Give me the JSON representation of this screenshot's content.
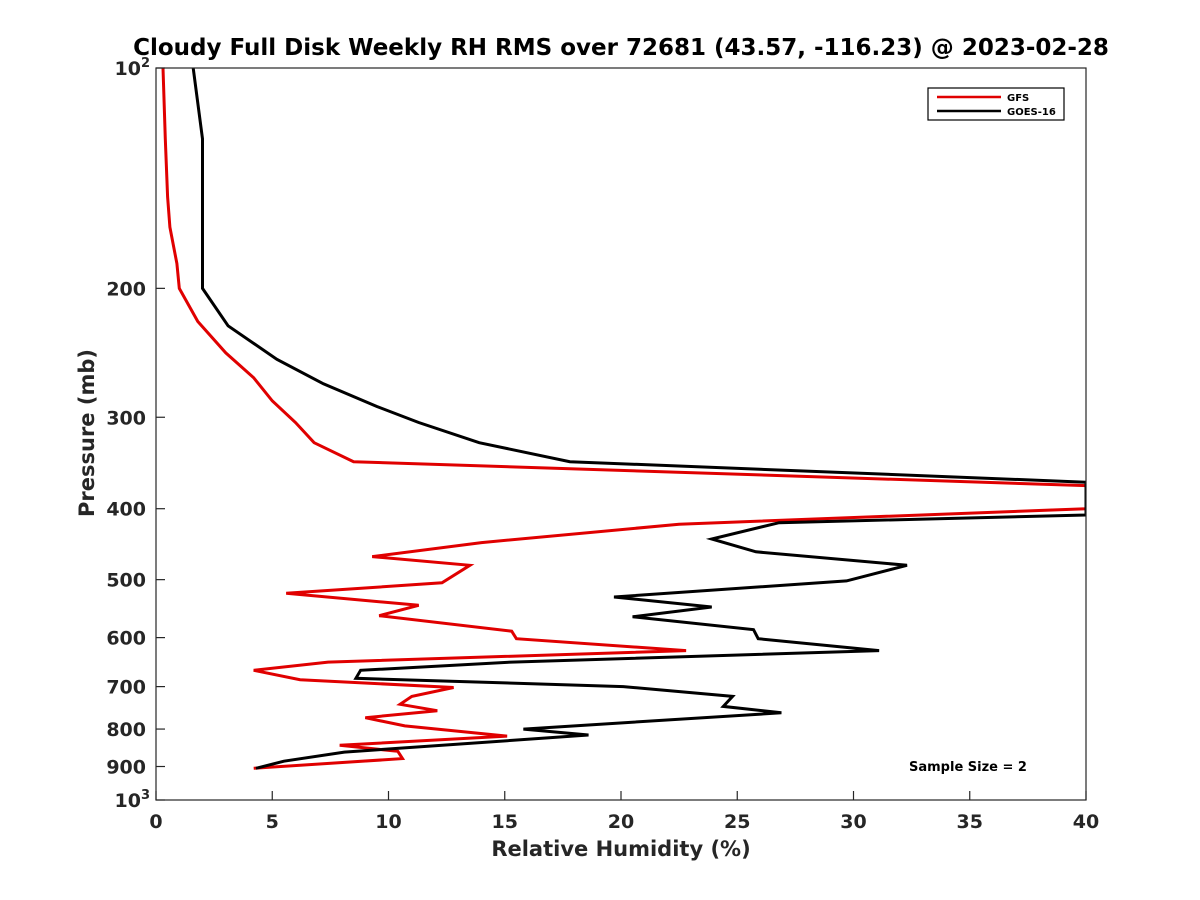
{
  "chart_data": {
    "type": "line",
    "title": "Cloudy Full Disk Weekly RH RMS over 72681 (43.57, -116.23) @ 2023-02-28",
    "xlabel": "Relative Humidity (%)",
    "ylabel": "Pressure (mb)",
    "xlim": [
      0,
      40
    ],
    "ylim": [
      100,
      1000
    ],
    "y_scale": "log",
    "y_reversed": true,
    "grid": false,
    "legend_position": "top-right",
    "x_ticks": [
      "0",
      "5",
      "10",
      "15",
      "20",
      "25",
      "30",
      "35",
      "40"
    ],
    "y_ticks": [
      {
        "value": 100,
        "base": "10",
        "exp": "2"
      },
      {
        "value": 200,
        "label": "200"
      },
      {
        "value": 300,
        "label": "300"
      },
      {
        "value": 400,
        "label": "400"
      },
      {
        "value": 500,
        "label": "500"
      },
      {
        "value": 600,
        "label": "600"
      },
      {
        "value": 700,
        "label": "700"
      },
      {
        "value": 800,
        "label": "800"
      },
      {
        "value": 900,
        "label": "900"
      },
      {
        "value": 1000,
        "base": "10",
        "exp": "3"
      }
    ],
    "annotation": "Sample Size = 2",
    "series": [
      {
        "name": "GFS",
        "color": "#e00000",
        "points": [
          [
            0.3,
            100
          ],
          [
            0.4,
            125
          ],
          [
            0.5,
            150
          ],
          [
            0.6,
            165
          ],
          [
            0.9,
            185
          ],
          [
            1.0,
            200
          ],
          [
            1.8,
            222
          ],
          [
            3.0,
            245
          ],
          [
            4.2,
            265
          ],
          [
            5.0,
            285
          ],
          [
            6.0,
            305
          ],
          [
            6.8,
            325
          ],
          [
            8.5,
            345
          ],
          [
            40,
            372
          ],
          [
            40,
            400
          ],
          [
            22.5,
            420
          ],
          [
            14,
            445
          ],
          [
            9.3,
            465
          ],
          [
            13.5,
            478
          ],
          [
            12.3,
            505
          ],
          [
            5.6,
            522
          ],
          [
            11.3,
            542
          ],
          [
            9.6,
            560
          ],
          [
            15.3,
            588
          ],
          [
            15.5,
            602
          ],
          [
            22.8,
            625
          ],
          [
            7.4,
            648
          ],
          [
            4.2,
            665
          ],
          [
            6.2,
            685
          ],
          [
            12.8,
            702
          ],
          [
            11.0,
            722
          ],
          [
            10.5,
            740
          ],
          [
            12.1,
            755
          ],
          [
            9.0,
            772
          ],
          [
            10.7,
            792
          ],
          [
            15.1,
            818
          ],
          [
            7.9,
            842
          ],
          [
            10.4,
            858
          ],
          [
            10.6,
            878
          ],
          [
            4.2,
            905
          ]
        ]
      },
      {
        "name": "GOES-16",
        "color": "#000000",
        "points": [
          [
            1.6,
            100
          ],
          [
            2.0,
            125
          ],
          [
            2.0,
            150
          ],
          [
            2.0,
            175
          ],
          [
            2.0,
            200
          ],
          [
            3.1,
            225
          ],
          [
            5.2,
            250
          ],
          [
            7.2,
            270
          ],
          [
            9.5,
            290
          ],
          [
            11.3,
            305
          ],
          [
            13.9,
            325
          ],
          [
            17.8,
            345
          ],
          [
            40,
            368
          ],
          [
            40,
            408
          ],
          [
            26.8,
            418
          ],
          [
            23.9,
            440
          ],
          [
            25.8,
            458
          ],
          [
            32.3,
            478
          ],
          [
            29.7,
            502
          ],
          [
            19.7,
            528
          ],
          [
            23.9,
            545
          ],
          [
            20.5,
            562
          ],
          [
            25.7,
            585
          ],
          [
            25.9,
            602
          ],
          [
            31.1,
            625
          ],
          [
            15.3,
            648
          ],
          [
            8.8,
            665
          ],
          [
            8.6,
            682
          ],
          [
            20.1,
            700
          ],
          [
            24.8,
            722
          ],
          [
            24.4,
            745
          ],
          [
            26.9,
            760
          ],
          [
            15.8,
            800
          ],
          [
            18.6,
            815
          ],
          [
            8.1,
            860
          ],
          [
            5.5,
            885
          ],
          [
            4.3,
            905
          ]
        ]
      }
    ]
  }
}
